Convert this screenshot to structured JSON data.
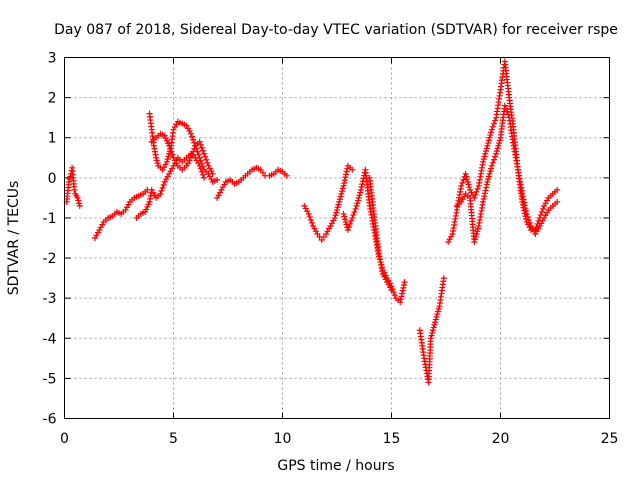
{
  "chart_data": {
    "type": "scatter",
    "title": "Day 087 of 2018, Sidereal Day-to-day VTEC variation (SDTVAR) for receiver rspe",
    "xlabel": "GPS time / hours",
    "ylabel": "SDTVAR / TECUs",
    "xlim": [
      0,
      25
    ],
    "ylim": [
      -6,
      3
    ],
    "xticks": [
      0,
      5,
      10,
      15,
      20,
      25
    ],
    "yticks": [
      -6,
      -5,
      -4,
      -3,
      -2,
      -1,
      0,
      1,
      2,
      3
    ],
    "grid": true,
    "marker": "+",
    "color": "#ff0000",
    "series": [
      {
        "name": "SDTVAR",
        "segments": [
          {
            "x": [
              0.1,
              0.2,
              0.3,
              0.35,
              0.4,
              0.45,
              0.5,
              0.6,
              0.7
            ],
            "y": [
              -0.6,
              -0.1,
              0.1,
              0.25,
              0.0,
              -0.3,
              -0.4,
              -0.5,
              -0.7
            ]
          },
          {
            "x": [
              1.4,
              1.6,
              1.8,
              2.0,
              2.2,
              2.4,
              2.6,
              2.8,
              3.0,
              3.2,
              3.4,
              3.6,
              3.8
            ],
            "y": [
              -1.5,
              -1.3,
              -1.1,
              -1.0,
              -0.95,
              -0.85,
              -0.9,
              -0.8,
              -0.6,
              -0.5,
              -0.45,
              -0.4,
              -0.3
            ]
          },
          {
            "x": [
              3.3,
              3.5,
              3.7,
              3.9,
              4.0,
              4.2,
              4.4,
              4.6,
              4.8,
              5.0,
              5.2,
              5.4,
              5.6,
              5.8,
              6.0,
              6.2,
              6.4
            ],
            "y": [
              -1.0,
              -0.9,
              -0.85,
              -0.6,
              -0.3,
              -0.5,
              -0.4,
              -0.1,
              0.1,
              0.3,
              0.5,
              0.4,
              0.5,
              0.6,
              0.5,
              0.3,
              0.0
            ]
          },
          {
            "x": [
              3.9,
              4.0,
              4.1,
              4.2,
              4.3,
              4.5,
              4.7,
              4.9,
              5.0,
              5.2,
              5.4,
              5.6,
              5.8,
              6.0,
              6.2,
              6.4,
              6.6,
              6.8,
              7.0
            ],
            "y": [
              1.6,
              1.2,
              0.8,
              0.5,
              0.3,
              0.2,
              0.4,
              0.8,
              1.2,
              1.4,
              1.35,
              1.3,
              1.1,
              0.8,
              0.5,
              0.2,
              0.1,
              -0.1,
              -0.05
            ]
          },
          {
            "x": [
              4.0,
              4.2,
              4.4,
              4.6,
              4.8,
              5.0,
              5.2,
              5.4,
              5.6,
              5.8,
              6.0,
              6.2,
              6.4,
              6.6,
              6.8
            ],
            "y": [
              0.9,
              1.0,
              1.1,
              1.05,
              0.8,
              0.5,
              0.3,
              0.2,
              0.3,
              0.5,
              0.8,
              0.9,
              0.6,
              0.3,
              0.1
            ]
          },
          {
            "x": [
              7.0,
              7.2,
              7.4,
              7.6,
              7.8,
              8.0,
              8.2,
              8.4,
              8.6,
              8.8,
              9.0,
              9.2,
              9.4,
              9.6,
              9.8,
              10.0,
              10.2
            ],
            "y": [
              -0.5,
              -0.3,
              -0.1,
              -0.05,
              -0.15,
              -0.1,
              0.0,
              0.1,
              0.2,
              0.25,
              0.2,
              0.05,
              0.05,
              0.1,
              0.2,
              0.15,
              0.05
            ]
          },
          {
            "x": [
              11.0,
              11.2,
              11.4,
              11.6,
              11.8,
              12.0,
              12.2,
              12.4,
              12.6,
              12.8,
              13.0,
              13.2
            ],
            "y": [
              -0.7,
              -0.9,
              -1.2,
              -1.4,
              -1.55,
              -1.4,
              -1.2,
              -1.0,
              -0.6,
              -0.2,
              0.3,
              0.2
            ]
          },
          {
            "x": [
              12.8,
              13.0,
              13.2,
              13.4,
              13.6,
              13.8,
              14.0,
              14.2,
              14.4,
              14.6,
              14.8,
              15.0,
              15.2,
              15.4,
              15.6
            ],
            "y": [
              -0.9,
              -1.3,
              -1.0,
              -0.7,
              -0.3,
              0.2,
              -0.7,
              -1.3,
              -1.9,
              -2.3,
              -2.5,
              -2.7,
              -3.0,
              -3.1,
              -2.6
            ]
          },
          {
            "x": [
              14.0,
              14.2,
              14.4,
              14.6,
              14.8,
              15.0
            ],
            "y": [
              0.0,
              -0.9,
              -1.8,
              -2.4,
              -2.6,
              -2.8
            ]
          },
          {
            "x": [
              16.3,
              16.5,
              16.7,
              16.8,
              17.0,
              17.2,
              17.4
            ],
            "y": [
              -3.8,
              -4.5,
              -5.1,
              -4.0,
              -3.6,
              -3.2,
              -2.5
            ]
          },
          {
            "x": [
              17.6,
              17.8,
              18.0,
              18.2,
              18.4,
              18.6,
              18.8,
              19.0,
              19.2,
              19.4,
              19.6,
              19.8,
              20.0,
              20.2,
              20.4,
              20.6,
              20.8,
              21.0,
              21.2,
              21.4,
              21.6,
              21.8,
              22.0,
              22.2,
              22.4,
              22.6
            ],
            "y": [
              -1.6,
              -1.4,
              -0.8,
              -0.2,
              0.1,
              -0.3,
              -0.5,
              -0.2,
              0.4,
              0.8,
              1.2,
              1.5,
              2.2,
              2.9,
              2.0,
              1.2,
              0.2,
              -0.6,
              -1.1,
              -1.3,
              -1.3,
              -1.0,
              -0.7,
              -0.5,
              -0.4,
              -0.3
            ]
          },
          {
            "x": [
              18.0,
              18.2,
              18.4,
              18.6,
              18.8,
              19.0,
              19.2,
              19.4,
              19.6,
              19.8,
              20.0,
              20.2,
              20.4,
              20.6,
              20.8,
              21.0,
              21.2,
              21.4,
              21.6,
              21.8,
              22.0,
              22.2,
              22.4,
              22.6
            ],
            "y": [
              -0.7,
              -0.6,
              -0.4,
              -0.5,
              -1.6,
              -1.2,
              -0.6,
              -0.1,
              0.3,
              0.6,
              1.0,
              1.8,
              1.5,
              0.8,
              0.2,
              -0.4,
              -0.9,
              -1.2,
              -1.4,
              -1.2,
              -1.0,
              -0.8,
              -0.7,
              -0.6
            ]
          }
        ]
      }
    ]
  }
}
